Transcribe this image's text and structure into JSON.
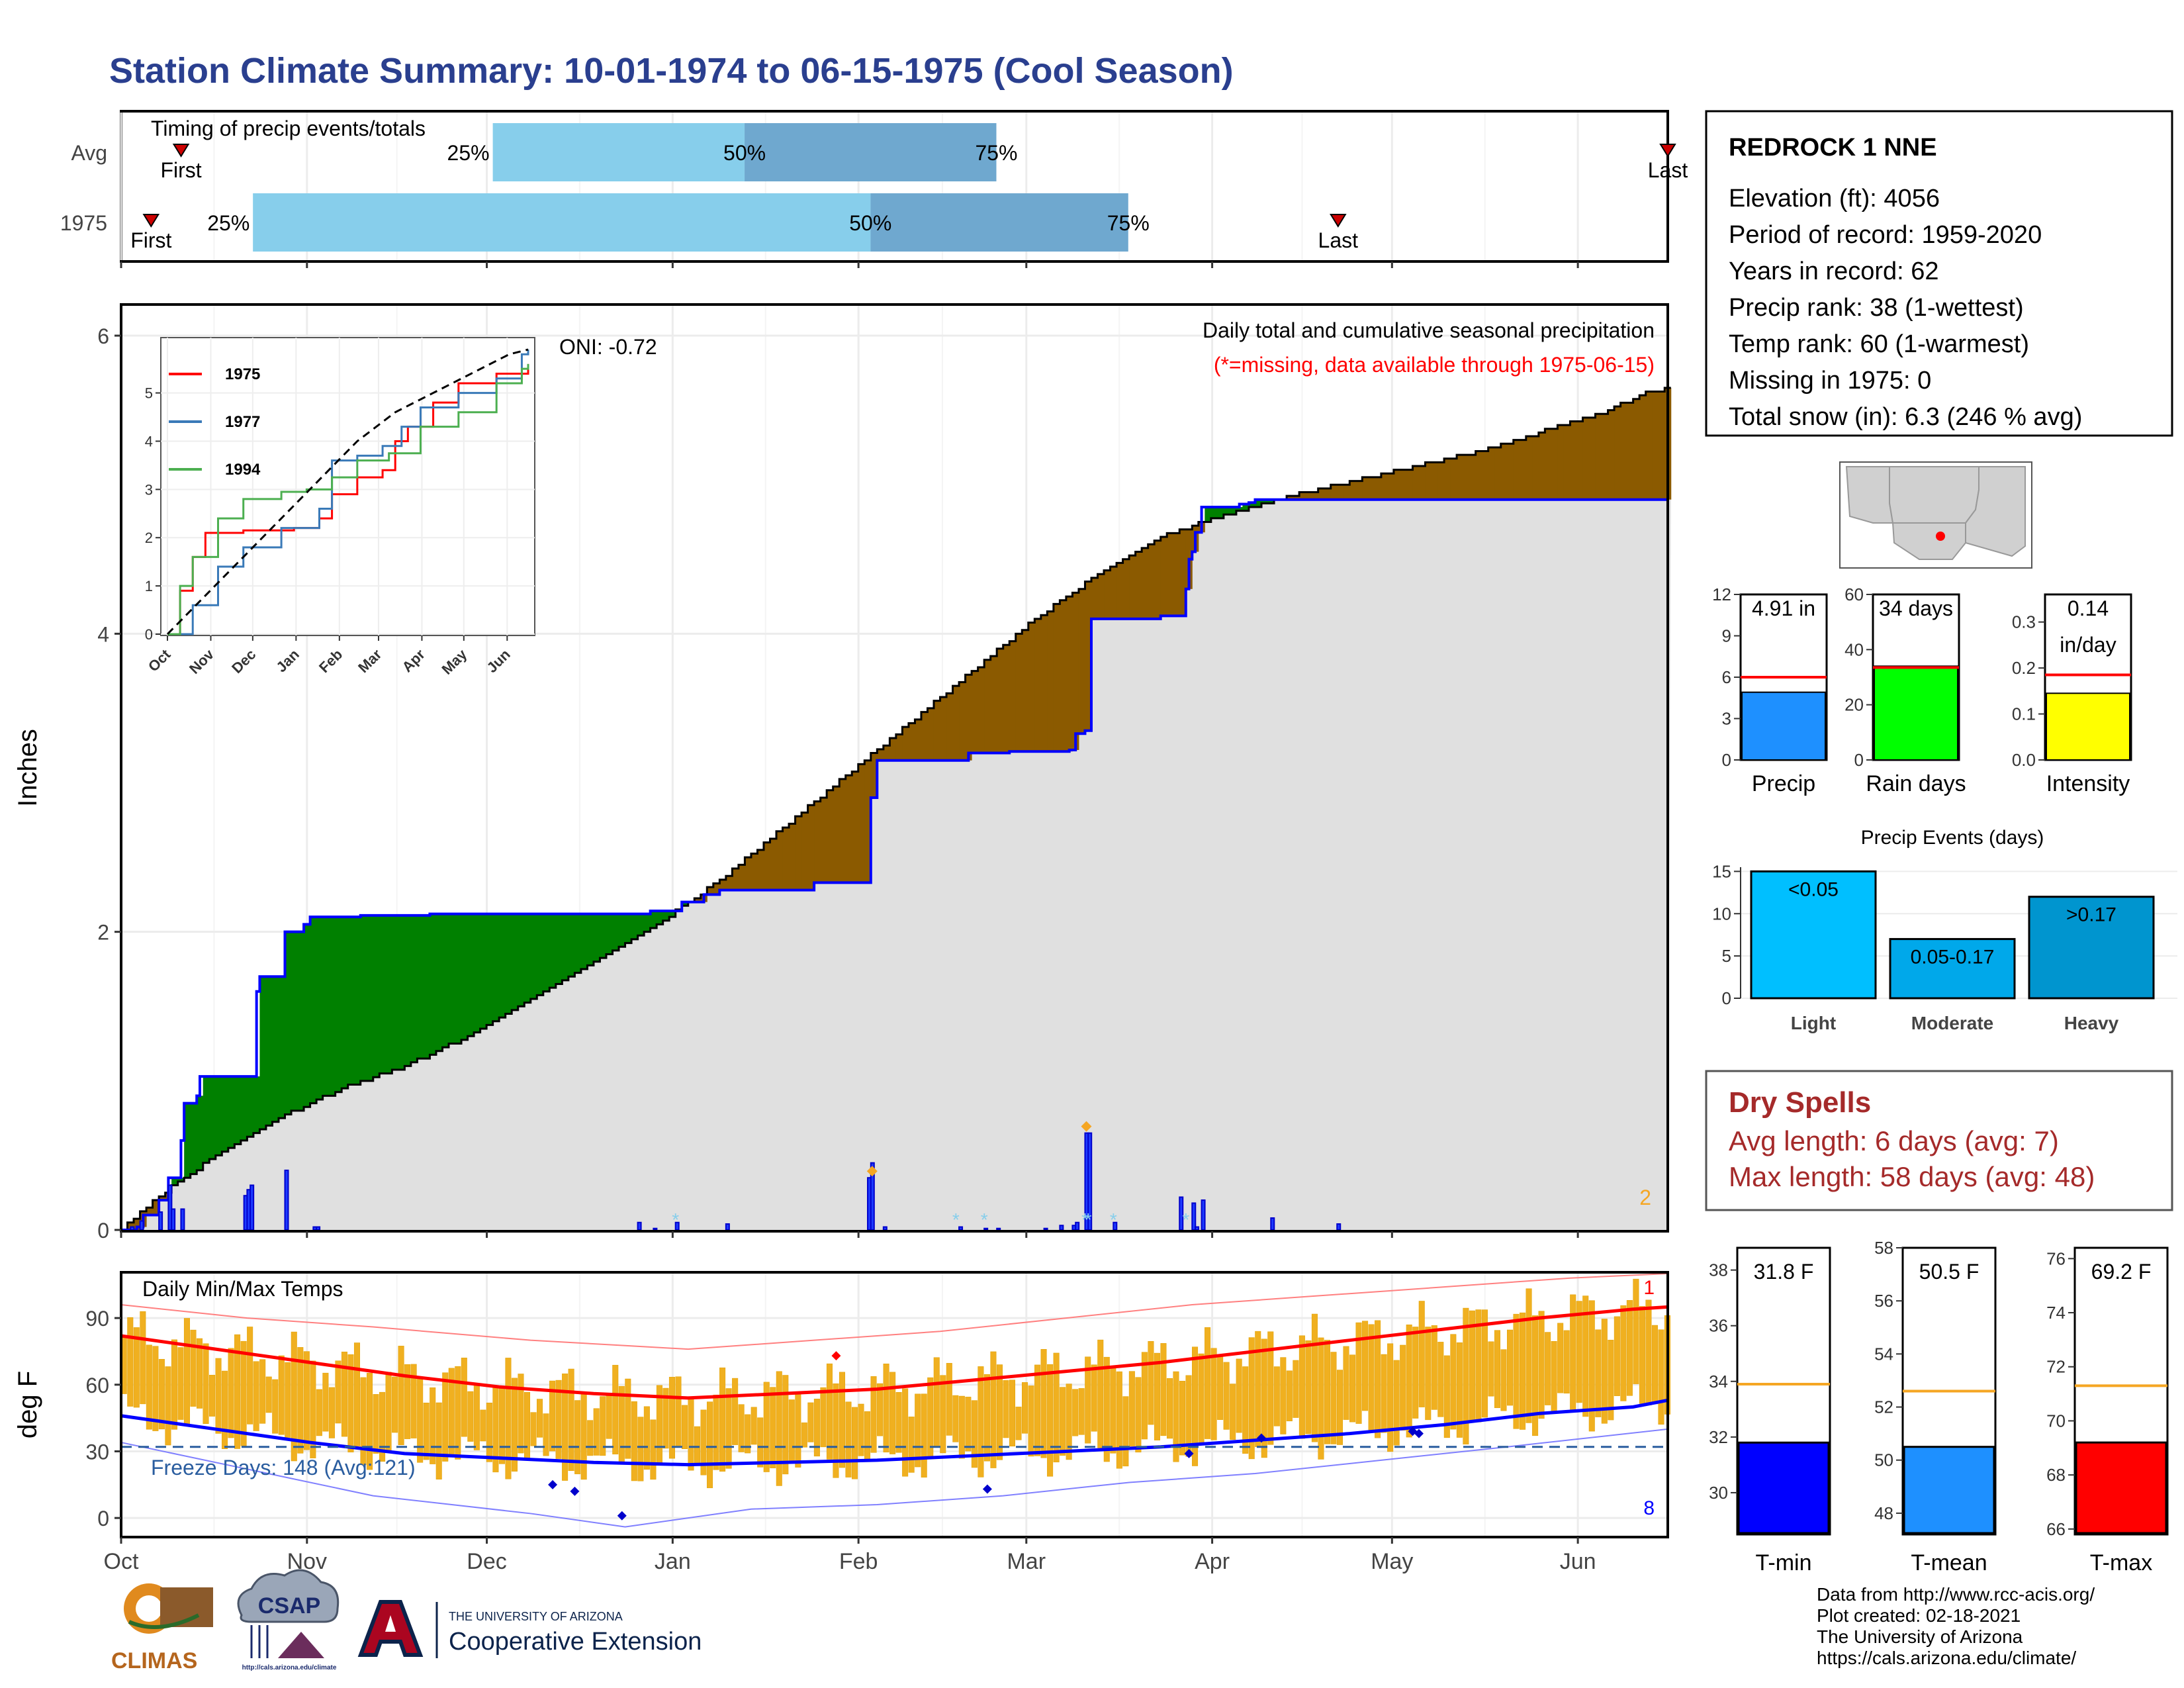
{
  "title": "Station Climate Summary: 10-01-1974 to 06-15-1975 (Cool Season)",
  "colors": {
    "title": "#2a3f8f",
    "q_light": "#87ceeb",
    "q_dark": "#6fa8cf",
    "green_fill": "#008000",
    "brown_fill": "#8b5a00",
    "gray_fill": "#e0e0e0",
    "blue_line": "#0000ff",
    "temp_bar": "#f0b020",
    "tmax_avg": "#ff0000",
    "tmin_avg": "#0000ff",
    "dry_spell_red": "#a52a2a",
    "avg_line": "#f5a623"
  },
  "months": [
    "Oct",
    "Nov",
    "Dec",
    "Jan",
    "Feb",
    "Mar",
    "Apr",
    "May",
    "Jun"
  ],
  "timing": {
    "label": "Timing of precip events/totals",
    "rows": [
      {
        "name": "Avg",
        "first": "First",
        "last": "Last",
        "q25": "25%",
        "q50": "50%",
        "q75": "75%",
        "first_day": 10,
        "p25_day": 62,
        "p50_day": 104,
        "p75_day": 146,
        "last_day": 258
      },
      {
        "name": "1975",
        "first": "First",
        "last": "Last",
        "q25": "25%",
        "q50": "50%",
        "q75": "75%",
        "first_day": 5,
        "p25_day": 22,
        "p50_day": 125,
        "p75_day": 168,
        "last_day": 203
      }
    ]
  },
  "precip_chart": {
    "title": "Daily total and cumulative seasonal precipitation",
    "missing_note": "(*=missing, data available through 1975-06-15)",
    "oni": "ONI: -0.72",
    "ylabel": "Inches",
    "yticks": [
      "0",
      "2",
      "4",
      "6"
    ],
    "corner_value": "2",
    "ylim": [
      0,
      6.2
    ],
    "avg_cum": [
      [
        0,
        0
      ],
      [
        10,
        0.2
      ],
      [
        30,
        0.5
      ],
      [
        50,
        0.75
      ],
      [
        70,
        0.95
      ],
      [
        90,
        1.1
      ],
      [
        110,
        1.3
      ],
      [
        130,
        1.55
      ],
      [
        150,
        1.8
      ],
      [
        170,
        2.05
      ],
      [
        190,
        2.35
      ],
      [
        210,
        2.7
      ],
      [
        230,
        3.05
      ],
      [
        250,
        3.4
      ],
      [
        270,
        3.75
      ],
      [
        290,
        4.1
      ],
      [
        310,
        4.4
      ],
      [
        330,
        4.65
      ],
      [
        350,
        4.8
      ],
      [
        370,
        4.92
      ],
      [
        390,
        5.02
      ],
      [
        410,
        5.12
      ],
      [
        430,
        5.22
      ],
      [
        450,
        5.35
      ],
      [
        470,
        5.48
      ],
      [
        484,
        5.62
      ],
      [
        491,
        5.65
      ]
    ],
    "year_cum": [
      [
        0,
        0
      ],
      [
        5,
        0.02
      ],
      [
        7,
        0.1
      ],
      [
        12,
        0.2
      ],
      [
        15,
        0.35
      ],
      [
        19,
        0.4
      ],
      [
        19,
        0.6
      ],
      [
        20,
        0.85
      ],
      [
        24,
        0.9
      ],
      [
        25,
        1.03
      ],
      [
        43,
        1.03
      ],
      [
        43,
        1.6
      ],
      [
        44,
        1.7
      ],
      [
        52,
        1.7
      ],
      [
        52,
        2.0
      ],
      [
        58,
        2.05
      ],
      [
        60,
        2.1
      ],
      [
        76,
        2.11
      ],
      [
        98,
        2.12
      ],
      [
        150,
        2.12
      ],
      [
        168,
        2.14
      ],
      [
        178,
        2.2
      ],
      [
        185,
        2.25
      ],
      [
        190,
        2.28
      ],
      [
        220,
        2.33
      ],
      [
        237,
        2.33
      ],
      [
        238,
        2.9
      ],
      [
        240,
        3.15
      ],
      [
        260,
        3.15
      ],
      [
        269,
        3.2
      ],
      [
        282,
        3.21
      ],
      [
        301,
        3.22
      ],
      [
        303,
        3.33
      ],
      [
        306,
        3.35
      ],
      [
        308,
        4.1
      ],
      [
        313,
        4.1
      ],
      [
        330,
        4.12
      ],
      [
        338,
        4.3
      ],
      [
        339,
        4.5
      ],
      [
        340,
        4.55
      ],
      [
        341,
        4.68
      ],
      [
        343,
        4.85
      ],
      [
        355,
        4.87
      ],
      [
        358,
        4.88
      ],
      [
        360,
        4.9
      ],
      [
        400,
        4.9
      ],
      [
        491,
        4.91
      ]
    ],
    "daily_bars": [
      [
        3,
        0.02
      ],
      [
        6,
        0.06
      ],
      [
        12,
        0.12
      ],
      [
        15,
        0.3
      ],
      [
        16,
        0.14
      ],
      [
        19,
        0.14
      ],
      [
        39,
        0.23
      ],
      [
        40,
        0.27
      ],
      [
        41,
        0.3
      ],
      [
        52,
        0.4
      ],
      [
        61,
        0.02
      ],
      [
        62,
        0.02
      ],
      [
        164,
        0.05
      ],
      [
        169,
        0.01
      ],
      [
        176,
        0.05
      ],
      [
        192,
        0.04
      ],
      [
        237,
        0.35
      ],
      [
        238,
        0.45
      ],
      [
        242,
        0.02
      ],
      [
        266,
        0.02
      ],
      [
        274,
        0.01
      ],
      [
        278,
        0.01
      ],
      [
        293,
        0.01
      ],
      [
        298,
        0.03
      ],
      [
        302,
        0.03
      ],
      [
        303,
        0.05
      ],
      [
        306,
        0.65
      ],
      [
        307,
        0.65
      ],
      [
        315,
        0.05
      ],
      [
        336,
        0.22
      ],
      [
        340,
        0.18
      ],
      [
        341,
        0.02
      ],
      [
        343,
        0.2
      ],
      [
        365,
        0.08
      ],
      [
        386,
        0.04
      ]
    ],
    "missing_marks": [
      176,
      265,
      274,
      306,
      307,
      315,
      338
    ],
    "diamond_marks": [
      [
        238,
        0.35
      ],
      [
        306,
        0.65
      ]
    ],
    "inset": {
      "yticks": [
        "0",
        "1",
        "2",
        "3",
        "4",
        "5"
      ],
      "xticks": [
        "Oct",
        "Nov",
        "Dec",
        "Jan",
        "Feb",
        "Mar",
        "Apr",
        "May",
        "Jun"
      ],
      "series": [
        {
          "name": "1975",
          "color": "#ff0000",
          "points": [
            [
              0,
              0
            ],
            [
              10,
              0.9
            ],
            [
              20,
              1.6
            ],
            [
              30,
              2.1
            ],
            [
              60,
              2.15
            ],
            [
              100,
              2.2
            ],
            [
              120,
              2.4
            ],
            [
              130,
              2.9
            ],
            [
              150,
              3.25
            ],
            [
              170,
              3.4
            ],
            [
              180,
              4.0
            ],
            [
              190,
              4.3
            ],
            [
              210,
              4.8
            ],
            [
              230,
              5.2
            ],
            [
              260,
              5.4
            ],
            [
              285,
              5.6
            ]
          ]
        },
        {
          "name": "1977",
          "color": "#3a7ab8",
          "points": [
            [
              0,
              0
            ],
            [
              20,
              0.6
            ],
            [
              40,
              1.4
            ],
            [
              60,
              1.8
            ],
            [
              90,
              2.2
            ],
            [
              120,
              2.6
            ],
            [
              130,
              3.6
            ],
            [
              150,
              3.7
            ],
            [
              170,
              3.9
            ],
            [
              185,
              4.3
            ],
            [
              200,
              4.7
            ],
            [
              230,
              5.0
            ],
            [
              260,
              5.3
            ],
            [
              280,
              5.8
            ],
            [
              285,
              5.9
            ]
          ]
        },
        {
          "name": "1994",
          "color": "#4caf50",
          "points": [
            [
              0,
              0
            ],
            [
              10,
              1.0
            ],
            [
              20,
              1.6
            ],
            [
              40,
              2.4
            ],
            [
              60,
              2.8
            ],
            [
              90,
              2.95
            ],
            [
              110,
              3.0
            ],
            [
              130,
              3.25
            ],
            [
              150,
              3.6
            ],
            [
              175,
              3.75
            ],
            [
              200,
              4.3
            ],
            [
              230,
              4.6
            ],
            [
              260,
              5.2
            ],
            [
              280,
              5.5
            ],
            [
              285,
              5.6
            ]
          ]
        }
      ],
      "avg_points": [
        [
          0,
          0
        ],
        [
          30,
          0.8
        ],
        [
          60,
          1.6
        ],
        [
          90,
          2.4
        ],
        [
          120,
          3.2
        ],
        [
          150,
          4.0
        ],
        [
          180,
          4.6
        ],
        [
          210,
          5.0
        ],
        [
          240,
          5.4
        ],
        [
          270,
          5.8
        ],
        [
          285,
          5.9
        ]
      ]
    }
  },
  "temp_chart": {
    "title": "Daily Min/Max Temps",
    "ylabel": "deg F",
    "yticks": [
      "0",
      "30",
      "60",
      "90"
    ],
    "freeze_label": "Freeze Days: 148 (Avg:121)",
    "red_count": "1",
    "blue_count": "8",
    "ylim": [
      -8,
      110
    ],
    "freeze_line": 32,
    "tmax_avg": [
      [
        0,
        82
      ],
      [
        30,
        76
      ],
      [
        60,
        70
      ],
      [
        90,
        64
      ],
      [
        120,
        59
      ],
      [
        150,
        56
      ],
      [
        180,
        54
      ],
      [
        210,
        56
      ],
      [
        240,
        58
      ],
      [
        270,
        62
      ],
      [
        300,
        66
      ],
      [
        330,
        70
      ],
      [
        360,
        75
      ],
      [
        390,
        80
      ],
      [
        420,
        85
      ],
      [
        450,
        90
      ],
      [
        480,
        94
      ],
      [
        491,
        95
      ]
    ],
    "tmin_avg": [
      [
        0,
        46
      ],
      [
        30,
        40
      ],
      [
        60,
        34
      ],
      [
        90,
        29
      ],
      [
        120,
        27
      ],
      [
        150,
        25
      ],
      [
        180,
        24
      ],
      [
        210,
        25
      ],
      [
        240,
        26
      ],
      [
        270,
        28
      ],
      [
        300,
        30
      ],
      [
        330,
        32
      ],
      [
        360,
        35
      ],
      [
        390,
        38
      ],
      [
        420,
        42
      ],
      [
        450,
        47
      ],
      [
        480,
        50
      ],
      [
        491,
        53
      ]
    ],
    "tmax_rec": [
      [
        0,
        96
      ],
      [
        40,
        90
      ],
      [
        80,
        86
      ],
      [
        130,
        80
      ],
      [
        180,
        76
      ],
      [
        220,
        80
      ],
      [
        260,
        84
      ],
      [
        300,
        90
      ],
      [
        340,
        96
      ],
      [
        380,
        100
      ],
      [
        420,
        104
      ],
      [
        460,
        108
      ],
      [
        491,
        110
      ]
    ],
    "tmin_rec": [
      [
        0,
        34
      ],
      [
        40,
        22
      ],
      [
        80,
        10
      ],
      [
        130,
        2
      ],
      [
        160,
        -4
      ],
      [
        200,
        4
      ],
      [
        240,
        6
      ],
      [
        280,
        10
      ],
      [
        320,
        16
      ],
      [
        360,
        20
      ],
      [
        400,
        26
      ],
      [
        440,
        32
      ],
      [
        491,
        40
      ]
    ],
    "diamonds_low": [
      [
        137,
        15
      ],
      [
        144,
        12
      ],
      [
        159,
        1
      ],
      [
        275,
        13
      ],
      [
        339,
        29
      ],
      [
        362,
        36
      ],
      [
        410,
        39
      ],
      [
        412,
        38
      ]
    ],
    "diamonds_high": [
      [
        227,
        73
      ]
    ]
  },
  "station": {
    "name": "REDROCK 1 NNE",
    "lines": [
      "Elevation (ft): 4056",
      "Period of record: 1959-2020",
      "Years in record: 62",
      "Precip rank: 38 (1-wettest)",
      "Temp rank: 60 (1-warmest)",
      "Missing in 1975: 0",
      "Total snow (in): 6.3 (246 % avg)"
    ]
  },
  "mini_bars": [
    {
      "label": "Precip",
      "value_text": "4.91 in",
      "value": 4.91,
      "avg": 6.0,
      "max": 12,
      "ticks": [
        "0",
        "3",
        "6",
        "9",
        "12"
      ],
      "color": "#1e90ff"
    },
    {
      "label": "Rain days",
      "value_text": "34 days",
      "value": 34,
      "avg": 33.5,
      "max": 60,
      "ticks": [
        "0",
        "20",
        "40",
        "60"
      ],
      "color": "#00ff00"
    },
    {
      "label": "Intensity",
      "value_text": "0.14",
      "value_text2": "in/day",
      "value": 0.145,
      "avg": 0.185,
      "max": 0.36,
      "ticks": [
        "0.0",
        "0.1",
        "0.2",
        "0.3"
      ],
      "color": "#ffff00"
    }
  ],
  "events": {
    "title": "Precip Events (days)",
    "ticks": [
      "0",
      "5",
      "10",
      "15"
    ],
    "bars": [
      {
        "label": "Light",
        "inner": "<0.05",
        "value": 15,
        "color": "#00bfff"
      },
      {
        "label": "Moderate",
        "inner": "0.05-0.17",
        "value": 7,
        "color": "#00a8ea"
      },
      {
        "label": "Heavy",
        "inner": ">0.17",
        "value": 12,
        "color": "#0095cf"
      }
    ]
  },
  "dry_spells": {
    "title": "Dry Spells",
    "avg": "Avg length: 6 days (avg: 7)",
    "max": "Max length: 58 days (avg: 48)"
  },
  "temp_bars": [
    {
      "label": "T-min",
      "value_text": "31.8 F",
      "value": 31.8,
      "avg": 33.9,
      "min": 28.5,
      "max": 38.8,
      "ticks": [
        "30",
        "32",
        "34",
        "36",
        "38"
      ],
      "color": "#0000ff"
    },
    {
      "label": "T-mean",
      "value_text": "50.5 F",
      "value": 50.5,
      "avg": 52.6,
      "min": 47.2,
      "max": 58,
      "ticks": [
        "48",
        "50",
        "52",
        "54",
        "56",
        "58"
      ],
      "color": "#1e90ff"
    },
    {
      "label": "T-max",
      "value_text": "69.2 F",
      "value": 69.2,
      "avg": 71.3,
      "min": 65.8,
      "max": 76.4,
      "ticks": [
        "66",
        "68",
        "70",
        "72",
        "74",
        "76"
      ],
      "color": "#ff0000"
    }
  ],
  "credits": [
    "Data from http://www.rcc-acis.org/",
    "Plot created: 02-18-2021",
    "The University of Arizona",
    "https://cals.arizona.edu/climate/"
  ],
  "logos": {
    "climas": "CLIMAS",
    "csap": "CSAP",
    "csap_url": "http://cals.arizona.edu/climate",
    "ua_top": "THE UNIVERSITY OF ARIZONA",
    "ua_bottom": "Cooperative Extension"
  }
}
